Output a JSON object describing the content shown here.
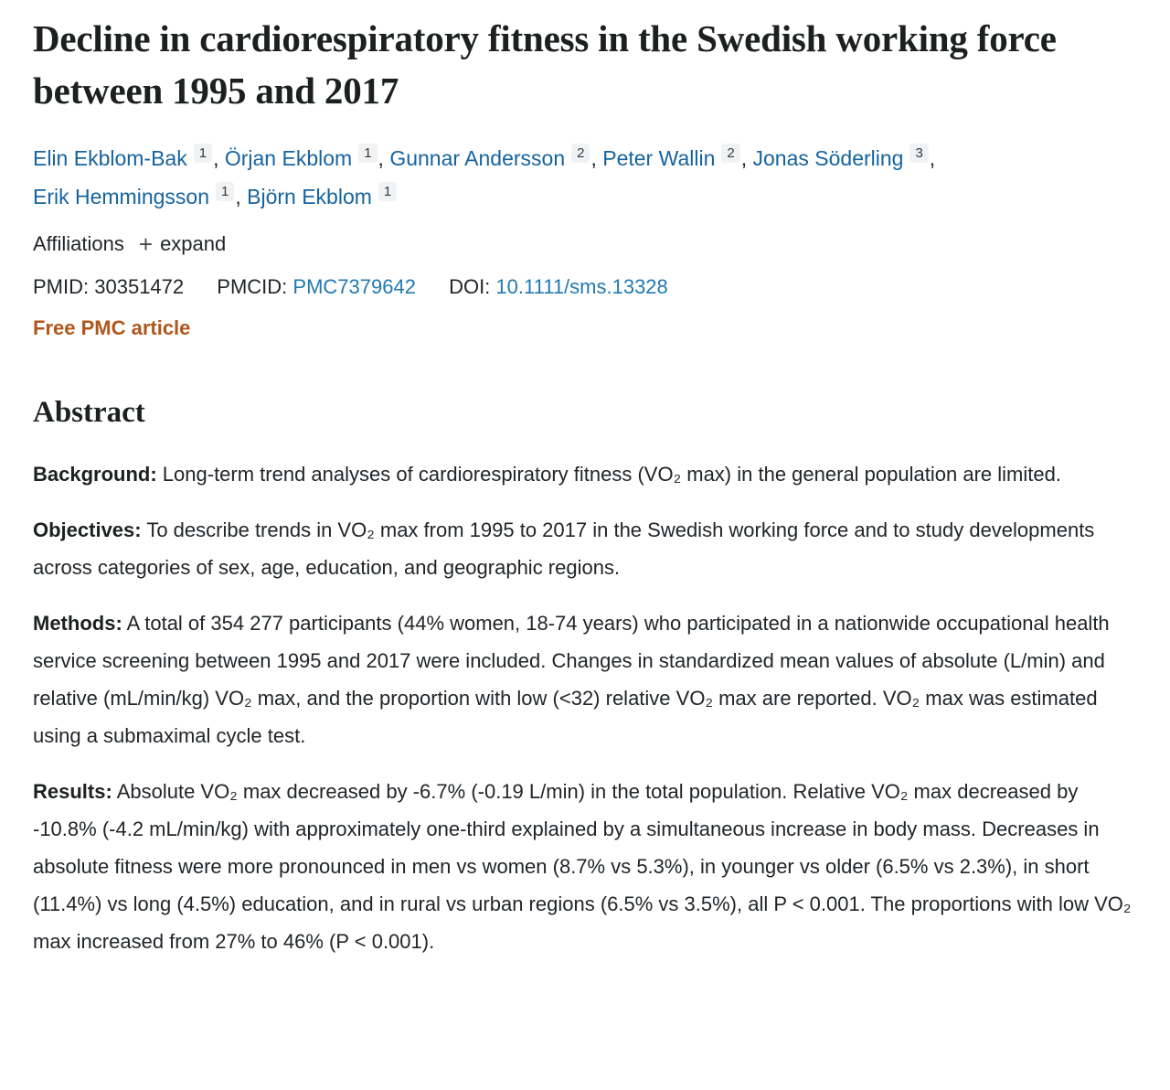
{
  "article": {
    "title": "Decline in cardiorespiratory fitness in the Swedish working force between 1995 and 2017"
  },
  "authors": {
    "separator": ",",
    "list": [
      {
        "name": "Elin Ekblom-Bak",
        "sup": "1"
      },
      {
        "name": "Örjan Ekblom",
        "sup": "1"
      },
      {
        "name": "Gunnar Andersson",
        "sup": "2"
      },
      {
        "name": "Peter Wallin",
        "sup": "2"
      },
      {
        "name": "Jonas Söderling",
        "sup": "3"
      },
      {
        "name": "Erik Hemmingsson",
        "sup": "1"
      },
      {
        "name": "Björn Ekblom",
        "sup": "1"
      }
    ]
  },
  "affiliations": {
    "label": "Affiliations",
    "expand_icon": "+",
    "expand_label": "expand"
  },
  "identifiers": {
    "pmid_label": "PMID:",
    "pmid_value": "30351472",
    "pmcid_label": "PMCID:",
    "pmcid_value": "PMC7379642",
    "doi_label": "DOI:",
    "doi_value": "10.1111/sms.13328"
  },
  "free_pmc_label": "Free PMC article",
  "abstract": {
    "heading": "Abstract",
    "sections": [
      {
        "label": "Background:",
        "text": "Long-term trend analyses of cardiorespiratory fitness (VO₂ max) in the general population are limited."
      },
      {
        "label": "Objectives:",
        "text": "To describe trends in VO₂ max from 1995 to 2017 in the Swedish working force and to study developments across categories of sex, age, education, and geographic regions."
      },
      {
        "label": "Methods:",
        "text": "A total of 354 277 participants (44% women, 18-74 years) who participated in a nationwide occupational health service screening between 1995 and 2017 were included. Changes in standardized mean values of absolute (L/min) and relative (mL/min/kg) VO₂ max, and the proportion with low (<32) relative VO₂ max are reported. VO₂ max was estimated using a submaximal cycle test."
      },
      {
        "label": "Results:",
        "text": "Absolute VO₂ max decreased by -6.7% (-0.19 L/min) in the total population. Relative VO₂ max decreased by -10.8% (-4.2 mL/min/kg) with approximately one-third explained by a simultaneous increase in body mass. Decreases in absolute fitness were more pronounced in men vs women (8.7% vs 5.3%), in younger vs older (6.5% vs 2.3%), in short (11.4%) vs long (4.5%) education, and in rural vs urban regions (6.5% vs 3.5%), all P < 0.001. The proportions with low VO₂ max increased from 27% to 46% (P < 0.001)."
      }
    ]
  },
  "colors": {
    "author-link": "#16649e",
    "id-link": "#2279b2",
    "free-pmc": "#b0571c",
    "text": "#212529",
    "heading": "#1d2021",
    "sup-bg": "#f1f2f3"
  }
}
